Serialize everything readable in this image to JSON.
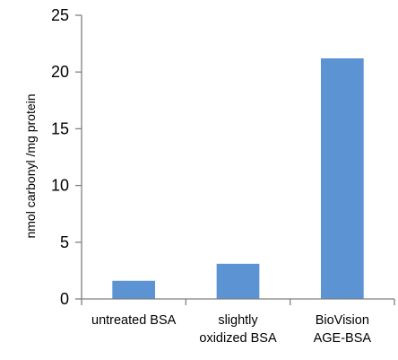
{
  "chart_data": {
    "type": "bar",
    "categories": [
      [
        "untreated BSA"
      ],
      [
        "slightly",
        "oxidized BSA"
      ],
      [
        "BioVision",
        "AGE-BSA"
      ]
    ],
    "values": [
      1.6,
      3.1,
      21.2
    ],
    "ylabel": "nmol carbonyl /mg protein",
    "xlabel": "",
    "ylim": [
      0,
      25
    ],
    "yticks": [
      0,
      5,
      10,
      15,
      20,
      25
    ],
    "grid": false,
    "bar_color": "#5b93d3"
  }
}
